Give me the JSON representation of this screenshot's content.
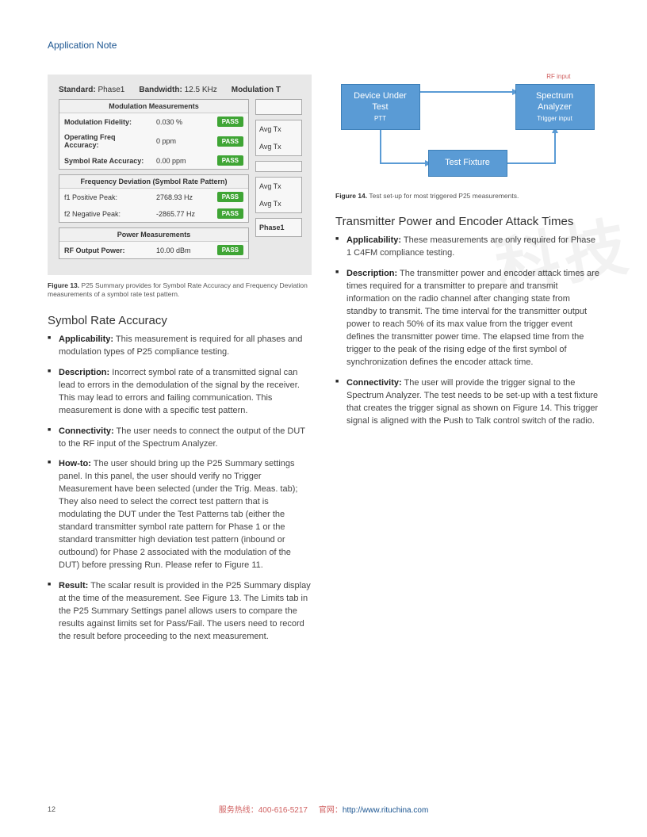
{
  "header": {
    "text": "Application Note"
  },
  "colors": {
    "accent_blue": "#1a5490",
    "pass_green": "#3fa535",
    "diagram_blue": "#5a9bd5",
    "diagram_border": "#3d7fb8",
    "panel_bg": "#e8e8e8",
    "box_border": "#aaaaaa",
    "rf_red": "#d06060",
    "text_body": "#444444",
    "caption_gray": "#555555"
  },
  "figure13": {
    "top": {
      "standard_label": "Standard:",
      "standard_value": "Phase1",
      "bandwidth_label": "Bandwidth:",
      "bandwidth_value": "12.5 KHz",
      "modulation_label": "Modulation T"
    },
    "box_mod": {
      "title": "Modulation Measurements",
      "rows": [
        {
          "label": "Modulation Fidelity:",
          "value": "0.030 %",
          "status": "PASS"
        },
        {
          "label": "Operating Freq Accuracy:",
          "value": "0 ppm",
          "status": "PASS"
        },
        {
          "label": "Symbol Rate Accuracy:",
          "value": "0.00 ppm",
          "status": "PASS"
        }
      ]
    },
    "box_freq": {
      "title": "Frequency Deviation (Symbol Rate Pattern)",
      "rows": [
        {
          "label": "f1 Positive Peak:",
          "value": "2768.93 Hz",
          "status": "PASS"
        },
        {
          "label": "f2 Negative Peak:",
          "value": "-2865.77 Hz",
          "status": "PASS"
        }
      ]
    },
    "box_pwr": {
      "title": "Power Measurements",
      "rows": [
        {
          "label": "RF Output Power:",
          "value": "10.00 dBm",
          "status": "PASS"
        }
      ]
    },
    "side": [
      "Avg Tx",
      "Avg Tx",
      "Avg Tx",
      "Avg Tx",
      "Phase1"
    ],
    "caption": {
      "label": "Figure 13.",
      "text": "P25 Summary provides for Symbol Rate Accuracy and Frequency Deviation measurements of a symbol rate test pattern."
    }
  },
  "diagram": {
    "rf_input": "RF  input",
    "dut": {
      "line1": "Device Under",
      "line2": "Test",
      "sub": "PTT"
    },
    "sa": {
      "line1": "Spectrum",
      "line2": "Analyzer",
      "sub": "Trigger input"
    },
    "tf": {
      "line1": "Test Fixture"
    },
    "box_color": "#5a9bd5",
    "line_color": "#5a9bd5"
  },
  "figure14_caption": {
    "label": "Figure 14.",
    "text": "Test set-up for most triggered P25 measurements."
  },
  "left": {
    "heading": "Symbol Rate Accuracy",
    "bullets": [
      {
        "bold": "Applicability:",
        "text": " This measurement is required for all phases and modulation types of P25 compliance testing."
      },
      {
        "bold": "Description:",
        "text": " Incorrect symbol rate of a transmitted signal can lead to errors in the demodulation of the signal by the receiver. This may lead to errors and failing communication. This measurement is done with a specific test pattern."
      },
      {
        "bold": "Connectivity:",
        "text": " The user needs to connect the output of the DUT to the RF input of the Spectrum Analyzer."
      },
      {
        "bold": "How-to:",
        "text": " The user should bring up the P25 Summary settings panel. In this panel, the user should verify no Trigger Measurement have been selected (under the Trig. Meas. tab); They also need to select the correct test pattern that is modulating the DUT under the Test Patterns tab (either the standard transmitter symbol rate pattern for Phase 1 or the standard transmitter high deviation test pattern (inbound or outbound) for Phase 2 associated with the modulation of the DUT) before pressing Run. Please refer to Figure 11."
      },
      {
        "bold": "Result:",
        "text": " The scalar result is provided in the P25 Summary display at the time of the measurement. See Figure 13. The Limits tab in the P25 Summary Settings panel allows users to compare the results against limits set for Pass/Fail. The users need to record the result before proceeding to the next measurement."
      }
    ]
  },
  "right": {
    "heading": "Transmitter Power and Encoder Attack Times",
    "bullets": [
      {
        "bold": "Applicability:",
        "text": " These measurements are only required for Phase 1 C4FM compliance testing."
      },
      {
        "bold": "Description:",
        "text": " The transmitter power and encoder attack times are times required for a transmitter to prepare and transmit information on the radio channel after changing state from standby to transmit. The time interval for the transmitter output power to reach 50% of its max value from the trigger event defines the transmitter power time. The elapsed time from the trigger to the peak of the rising edge of the first symbol of synchronization defines the encoder attack time."
      },
      {
        "bold": "Connectivity:",
        "text": " The user will provide the trigger signal to the Spectrum Analyzer. The test needs to be set-up with a test fixture that creates the trigger signal as shown on Figure 14. This trigger signal is aligned with the Push to Talk control switch of the radio."
      }
    ]
  },
  "watermark": "科技",
  "footer": {
    "page": "12",
    "hotline_label": "服务热线：",
    "hotline": "400-616-5217",
    "site_label": "官网：",
    "url": "http://www.rituchina.com"
  }
}
